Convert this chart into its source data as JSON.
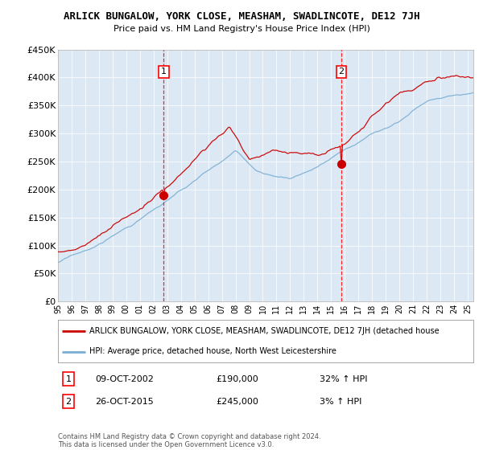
{
  "title": "ARLICK BUNGALOW, YORK CLOSE, MEASHAM, SWADLINCOTE, DE12 7JH",
  "subtitle": "Price paid vs. HM Land Registry's House Price Index (HPI)",
  "red_label": "ARLICK BUNGALOW, YORK CLOSE, MEASHAM, SWADLINCOTE, DE12 7JH (detached house",
  "blue_label": "HPI: Average price, detached house, North West Leicestershire",
  "sale1_date": "09-OCT-2002",
  "sale1_price": 190000,
  "sale1_note": "32% ↑ HPI",
  "sale2_date": "26-OCT-2015",
  "sale2_price": 245000,
  "sale2_note": "3% ↑ HPI",
  "footer": "Contains HM Land Registry data © Crown copyright and database right 2024.\nThis data is licensed under the Open Government Licence v3.0.",
  "ylim": [
    0,
    450000
  ],
  "yticks": [
    0,
    50000,
    100000,
    150000,
    200000,
    250000,
    300000,
    350000,
    400000,
    450000
  ],
  "plot_bg": "#dce9f5",
  "red_color": "#cc0000",
  "blue_color": "#7aaed4"
}
